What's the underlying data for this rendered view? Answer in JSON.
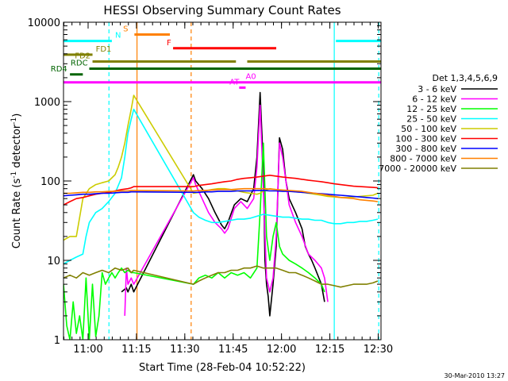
{
  "chart_data": {
    "type": "line",
    "title": "HESSI Observing Summary Count Rates",
    "xlabel": "Start Time (28-Feb-04 10:52:22)",
    "ylabel_main": "Count Rate (s",
    "ylabel_sup1": "-1",
    "ylabel_mid": " detector",
    "ylabel_sup2": "-1",
    "ylabel_end": ")",
    "y_scale": "log",
    "ylim": [
      1,
      10000
    ],
    "xlim_minutes": [
      0,
      98.5
    ],
    "x_ticks": [
      {
        "t": 7.63,
        "label": "11:00"
      },
      {
        "t": 22.63,
        "label": "11:15"
      },
      {
        "t": 37.63,
        "label": "11:30"
      },
      {
        "t": 52.63,
        "label": "11:45"
      },
      {
        "t": 67.63,
        "label": "12:00"
      },
      {
        "t": 82.63,
        "label": "12:15"
      },
      {
        "t": 97.63,
        "label": "12:30"
      }
    ],
    "y_ticks": [
      {
        "v": 1,
        "label": "1"
      },
      {
        "v": 10,
        "label": "10"
      },
      {
        "v": 100,
        "label": "100"
      },
      {
        "v": 1000,
        "label": "1000"
      },
      {
        "v": 10000,
        "label": "10000"
      }
    ],
    "legend_title": "Det 1,3,4,5,6,9",
    "legend_position": "right",
    "series": [
      {
        "name": "3 - 6 keV",
        "color": "#000000",
        "x": [
          0,
          3,
          6,
          9,
          12,
          13,
          16,
          18,
          19.5,
          20,
          21,
          21.8,
          40.3,
          41,
          43,
          45,
          47,
          49,
          50,
          51,
          53,
          55,
          57,
          59,
          60,
          61,
          62,
          62.5,
          63,
          63.5,
          64,
          65,
          66,
          67,
          68,
          69,
          70,
          72,
          74,
          75,
          76,
          77,
          78,
          80,
          81,
          82,
          84
        ],
        "y": [
          null,
          null,
          null,
          null,
          null,
          null,
          null,
          4,
          4.5,
          4,
          5,
          4,
          120,
          100,
          80,
          60,
          40,
          28,
          25,
          30,
          50,
          60,
          55,
          80,
          200,
          1300,
          150,
          10,
          5,
          3.5,
          2,
          5,
          15,
          350,
          250,
          100,
          60,
          40,
          25,
          15,
          12,
          10,
          8,
          5,
          3,
          null,
          null
        ]
      },
      {
        "name": "6 - 12 keV",
        "color": "#ff00ff",
        "x": [
          19,
          19.5,
          20,
          21,
          21.8,
          40.3,
          41,
          43,
          45,
          47,
          49,
          50,
          51,
          53,
          55,
          57,
          59,
          60,
          61,
          62,
          63,
          64,
          65,
          66,
          67,
          68,
          69,
          70,
          72,
          74,
          76,
          78,
          80,
          81,
          82
        ],
        "y": [
          2,
          8,
          5,
          6,
          5,
          110,
          90,
          60,
          40,
          30,
          25,
          22,
          25,
          45,
          55,
          45,
          60,
          150,
          900,
          80,
          6,
          4,
          6,
          20,
          300,
          200,
          100,
          50,
          30,
          20,
          12,
          10,
          8,
          6,
          3
        ]
      },
      {
        "name": "12 - 25 keV",
        "color": "#00ff00",
        "x": [
          0,
          1,
          2,
          3,
          4,
          5,
          6,
          7,
          8,
          9,
          10,
          11,
          12,
          13,
          14,
          15,
          16,
          17,
          18,
          19,
          20,
          21,
          21.8,
          40.3,
          42,
          44,
          46,
          48,
          50,
          52,
          54,
          56,
          58,
          60,
          61,
          62,
          63,
          64,
          65,
          66,
          67,
          68,
          70,
          72,
          74,
          76,
          78,
          80,
          81,
          82,
          84,
          86,
          88,
          90,
          92,
          94,
          96,
          97
        ],
        "y": [
          5,
          1.5,
          1,
          3,
          1.2,
          2,
          1,
          6,
          1,
          5,
          1.1,
          2,
          7,
          5,
          6,
          7,
          6,
          7,
          8,
          7,
          7.5,
          7,
          7,
          5,
          6,
          6.5,
          6,
          7,
          6,
          7,
          6.5,
          7,
          6,
          8,
          40,
          300,
          20,
          10,
          20,
          30,
          15,
          12,
          10,
          9,
          8,
          7,
          6,
          5,
          4,
          null,
          null,
          null,
          null,
          null,
          null,
          null,
          null,
          null
        ]
      },
      {
        "name": "25 - 50 keV",
        "color": "#00ffff",
        "x": [
          0,
          2,
          4,
          6,
          7,
          8,
          10,
          12,
          14,
          16,
          18,
          19,
          20,
          21,
          21.8,
          40.3,
          42,
          44,
          46,
          48,
          50,
          52,
          54,
          56,
          58,
          60,
          62,
          64,
          66,
          68,
          70,
          72,
          74,
          76,
          78,
          80,
          82,
          84,
          86,
          88,
          90,
          92,
          94,
          96,
          97.5
        ],
        "y": [
          9,
          10,
          11,
          12,
          20,
          30,
          40,
          45,
          55,
          70,
          110,
          200,
          400,
          600,
          800,
          40,
          35,
          32,
          30,
          30,
          31,
          32,
          33,
          33,
          34,
          36,
          38,
          37,
          36,
          35,
          35,
          34,
          33,
          33,
          32,
          32,
          30,
          29,
          29,
          30,
          30,
          31,
          31,
          32,
          33
        ]
      },
      {
        "name": "50 - 100 keV",
        "color": "#cccc00",
        "x": [
          0,
          2,
          4,
          6,
          8,
          10,
          12,
          14,
          16,
          17,
          18,
          19,
          20,
          21,
          21.8,
          40.3,
          42,
          44,
          46,
          48,
          50,
          52,
          54,
          56,
          58,
          60,
          61,
          62,
          64,
          66,
          68,
          70,
          72,
          74,
          76,
          78,
          80,
          82,
          84,
          86,
          88,
          90,
          92,
          94,
          96,
          97.5
        ],
        "y": [
          18,
          20,
          20,
          60,
          80,
          90,
          95,
          100,
          120,
          150,
          200,
          300,
          500,
          800,
          1200,
          70,
          72,
          75,
          78,
          80,
          80,
          78,
          75,
          72,
          70,
          68,
          70,
          75,
          80,
          78,
          76,
          75,
          73,
          72,
          70,
          68,
          66,
          64,
          63,
          62,
          62,
          63,
          64,
          65,
          66,
          70
        ]
      },
      {
        "name": "100 - 300 keV",
        "color": "#ff0000",
        "x": [
          0,
          2,
          4,
          6,
          8,
          10,
          12,
          14,
          16,
          18,
          20,
          21,
          21.8,
          40.3,
          42,
          44,
          46,
          48,
          50,
          52,
          54,
          56,
          58,
          60,
          62,
          64,
          66,
          68,
          70,
          72,
          74,
          76,
          78,
          80,
          82,
          84,
          86,
          88,
          90,
          92,
          94,
          96,
          97.5
        ],
        "y": [
          50,
          55,
          60,
          62,
          65,
          68,
          70,
          72,
          75,
          78,
          80,
          82,
          85,
          85,
          88,
          90,
          92,
          95,
          98,
          100,
          105,
          108,
          110,
          112,
          115,
          118,
          115,
          112,
          110,
          108,
          105,
          102,
          100,
          98,
          95,
          92,
          90,
          88,
          86,
          85,
          84,
          83,
          82
        ]
      },
      {
        "name": "300 - 800 keV",
        "color": "#0000ff",
        "x": [
          0,
          2,
          4,
          6,
          8,
          10,
          12,
          14,
          16,
          18,
          20,
          21,
          21.8,
          40.3,
          42,
          44,
          46,
          48,
          50,
          52,
          54,
          56,
          58,
          60,
          62,
          64,
          66,
          68,
          70,
          72,
          74,
          76,
          78,
          80,
          82,
          84,
          86,
          88,
          90,
          92,
          94,
          96,
          97.5
        ],
        "y": [
          65,
          66,
          67,
          68,
          68,
          69,
          70,
          70,
          71,
          72,
          72,
          73,
          73,
          72,
          72,
          73,
          73,
          74,
          74,
          74,
          75,
          75,
          75,
          76,
          76,
          75,
          75,
          74,
          74,
          73,
          72,
          71,
          70,
          69,
          68,
          67,
          66,
          65,
          64,
          63,
          62,
          61,
          60
        ]
      },
      {
        "name": "800 - 7000 keV",
        "color": "#ff8000",
        "x": [
          0,
          2,
          4,
          6,
          8,
          10,
          12,
          14,
          16,
          18,
          20,
          21,
          21.8,
          40.3,
          42,
          44,
          46,
          48,
          50,
          52,
          54,
          56,
          58,
          60,
          62,
          64,
          66,
          68,
          70,
          72,
          74,
          76,
          78,
          80,
          82,
          84,
          86,
          88,
          90,
          92,
          94,
          96,
          97.5
        ],
        "y": [
          70,
          70,
          71,
          72,
          72,
          73,
          73,
          74,
          74,
          75,
          75,
          76,
          76,
          75,
          76,
          76,
          77,
          78,
          78,
          78,
          79,
          80,
          80,
          80,
          80,
          79,
          78,
          77,
          76,
          75,
          74,
          72,
          70,
          68,
          66,
          64,
          62,
          61,
          60,
          58,
          57,
          56,
          55
        ]
      },
      {
        "name": "7000 - 20000 keV",
        "color": "#808000",
        "x": [
          0,
          2,
          4,
          6,
          8,
          10,
          12,
          14,
          16,
          18,
          20,
          21,
          21.8,
          40.3,
          42,
          44,
          46,
          48,
          50,
          52,
          54,
          56,
          58,
          60,
          62,
          64,
          66,
          68,
          70,
          72,
          74,
          76,
          78,
          80,
          82,
          84,
          86,
          88,
          90,
          92,
          94,
          96,
          97.5
        ],
        "y": [
          6,
          6.5,
          6,
          7,
          6.5,
          7,
          7.5,
          7,
          8,
          7.5,
          8,
          7,
          7.5,
          5,
          5.5,
          6,
          6.5,
          7,
          7,
          7.5,
          7.5,
          8,
          8,
          8.5,
          8,
          8,
          8,
          7.5,
          7,
          7,
          6.5,
          6,
          5.5,
          5,
          5,
          4.8,
          4.6,
          4.8,
          5,
          5,
          5,
          5.2,
          5.5
        ]
      }
    ],
    "annotations": [
      {
        "label": "N",
        "color": "#00ffff",
        "y": 5800,
        "segments": [
          [
            0,
            15
          ],
          [
            84.5,
            98.5
          ]
        ],
        "label_x": 16
      },
      {
        "label": "S",
        "color": "#ff8000",
        "y": 7000,
        "segments": [
          [
            22,
            33
          ]
        ],
        "label_x": 18.5
      },
      {
        "label": "F",
        "color": "#ff0000",
        "y": 4700,
        "segments": [
          [
            34,
            66
          ]
        ],
        "label_x": 32
      },
      {
        "label": "FD1",
        "color": "#808000",
        "y": 3900,
        "segments": [
          [
            0,
            9
          ]
        ],
        "label_x": 10
      },
      {
        "label": "FD2",
        "color": "#808000",
        "y": 3200,
        "segments": [
          [
            9,
            53.5
          ],
          [
            57,
            98.5
          ]
        ],
        "label_x": 3.5
      },
      {
        "label": "RDC",
        "color": "#006400",
        "y": 2600,
        "segments": [
          [
            8,
            98.5
          ]
        ],
        "label_x": 2.2
      },
      {
        "label": "RD4",
        "color": "#006400",
        "y": 2200,
        "segments": [
          [
            2,
            6
          ]
        ],
        "label_x": -4
      },
      {
        "label": "AT",
        "color": "#ff00ff",
        "y": 1500,
        "segments": [
          [
            54.5,
            56.5
          ]
        ],
        "label_x": 51.5
      },
      {
        "label": "A0",
        "color": "#ff00ff",
        "y": 1750,
        "segments": [
          [
            0,
            98.5
          ]
        ],
        "label_x": 56.5
      }
    ],
    "vlines": [
      {
        "t": 14.1,
        "color": "#00ffff",
        "style": "dashed"
      },
      {
        "t": 22.8,
        "color": "#ff8000",
        "style": "solid"
      },
      {
        "t": 39.6,
        "color": "#ff8000",
        "style": "dashed"
      },
      {
        "t": 84.0,
        "color": "#00ffff",
        "style": "solid"
      },
      {
        "t": 97.8,
        "color": "#00ffff",
        "style": "dashed"
      }
    ],
    "grid": false
  },
  "footer_date": "30-Mar-2010 13:27"
}
